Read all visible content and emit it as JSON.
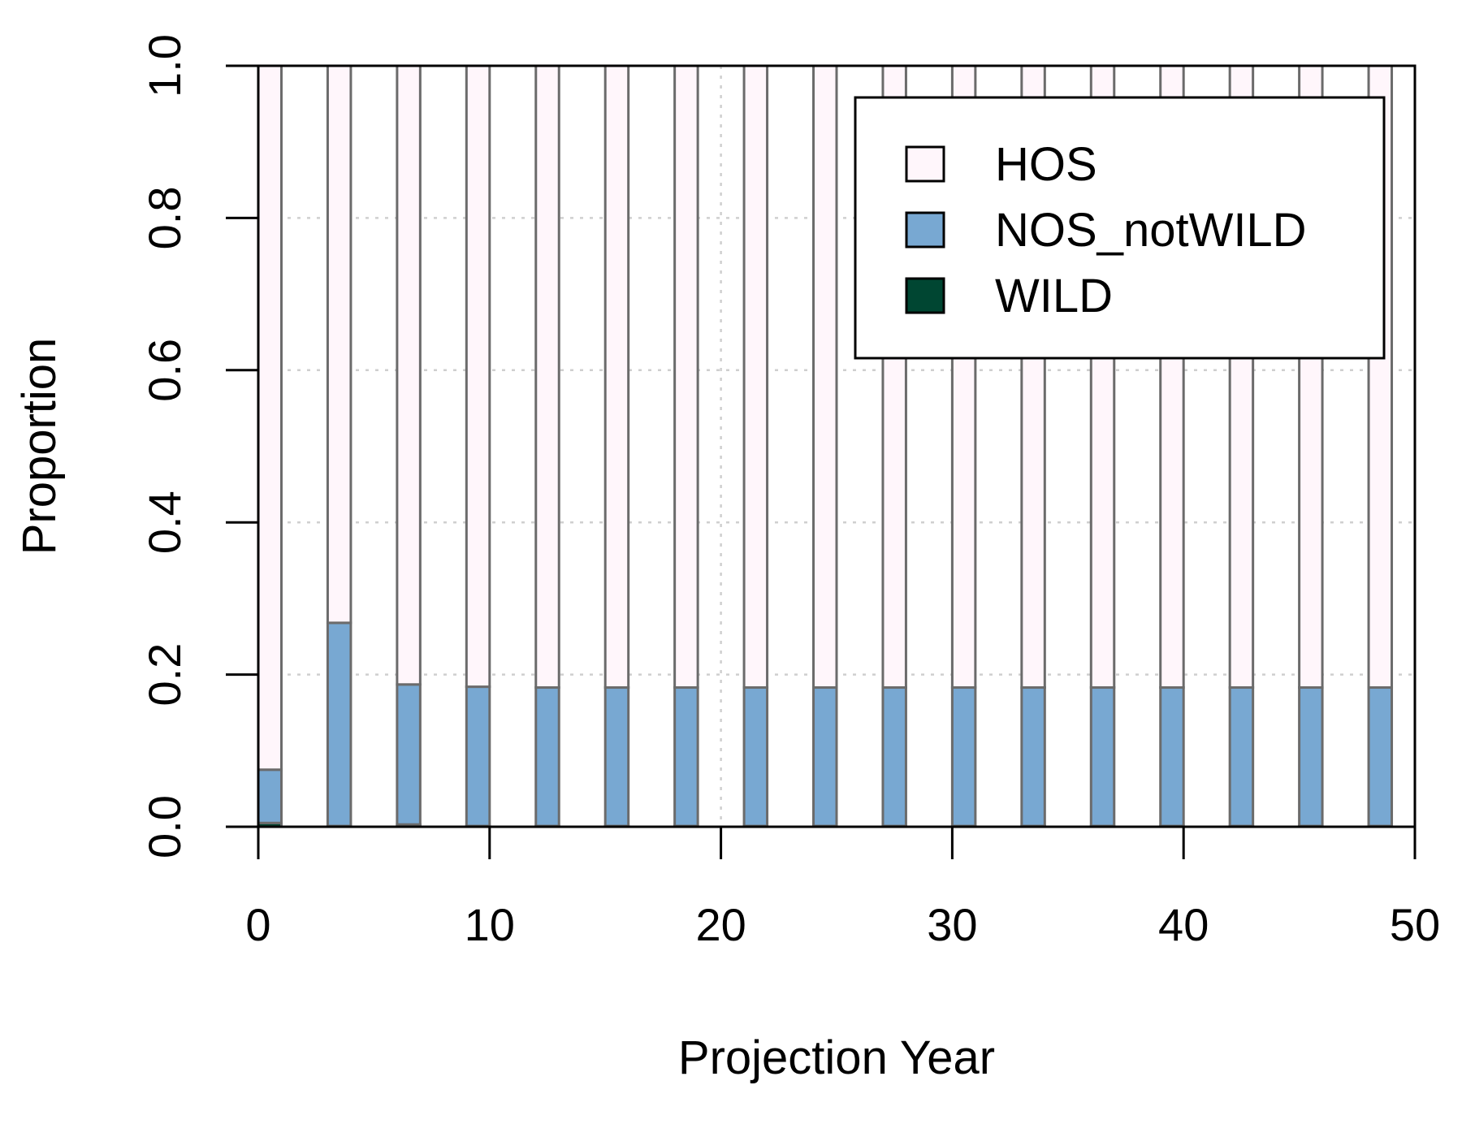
{
  "chart_data": {
    "type": "bar",
    "stacked": true,
    "xlabel": "Projection Year",
    "ylabel": "Proportion",
    "xlim": [
      0,
      50
    ],
    "ylim": [
      0,
      1
    ],
    "x_ticks": [
      "0",
      "10",
      "20",
      "30",
      "40",
      "50"
    ],
    "y_ticks": [
      "0.0",
      "0.2",
      "0.4",
      "0.6",
      "0.8",
      "1.0"
    ],
    "grid": true,
    "legend_position": "top-right",
    "x": [
      0,
      3,
      6,
      9,
      12,
      15,
      18,
      21,
      24,
      27,
      30,
      33,
      36,
      39,
      42,
      45,
      48
    ],
    "series": [
      {
        "name": "WILD",
        "color": "#004632",
        "values": [
          0.005,
          0.001,
          0.003,
          0.001,
          0.001,
          0.001,
          0.001,
          0.001,
          0.001,
          0.001,
          0.001,
          0.001,
          0.001,
          0.001,
          0.001,
          0.001,
          0.001
        ]
      },
      {
        "name": "NOS_notWILD",
        "color": "#78a8d2",
        "values": [
          0.07,
          0.267,
          0.184,
          0.183,
          0.182,
          0.182,
          0.182,
          0.182,
          0.182,
          0.182,
          0.182,
          0.182,
          0.182,
          0.182,
          0.182,
          0.182,
          0.182
        ]
      },
      {
        "name": "HOS",
        "color": "#fff6fb",
        "values": [
          0.925,
          0.732,
          0.813,
          0.816,
          0.817,
          0.817,
          0.817,
          0.817,
          0.817,
          0.817,
          0.817,
          0.817,
          0.817,
          0.817,
          0.817,
          0.817,
          0.817
        ]
      }
    ],
    "legend_order": [
      "HOS",
      "NOS_notWILD",
      "WILD"
    ]
  }
}
